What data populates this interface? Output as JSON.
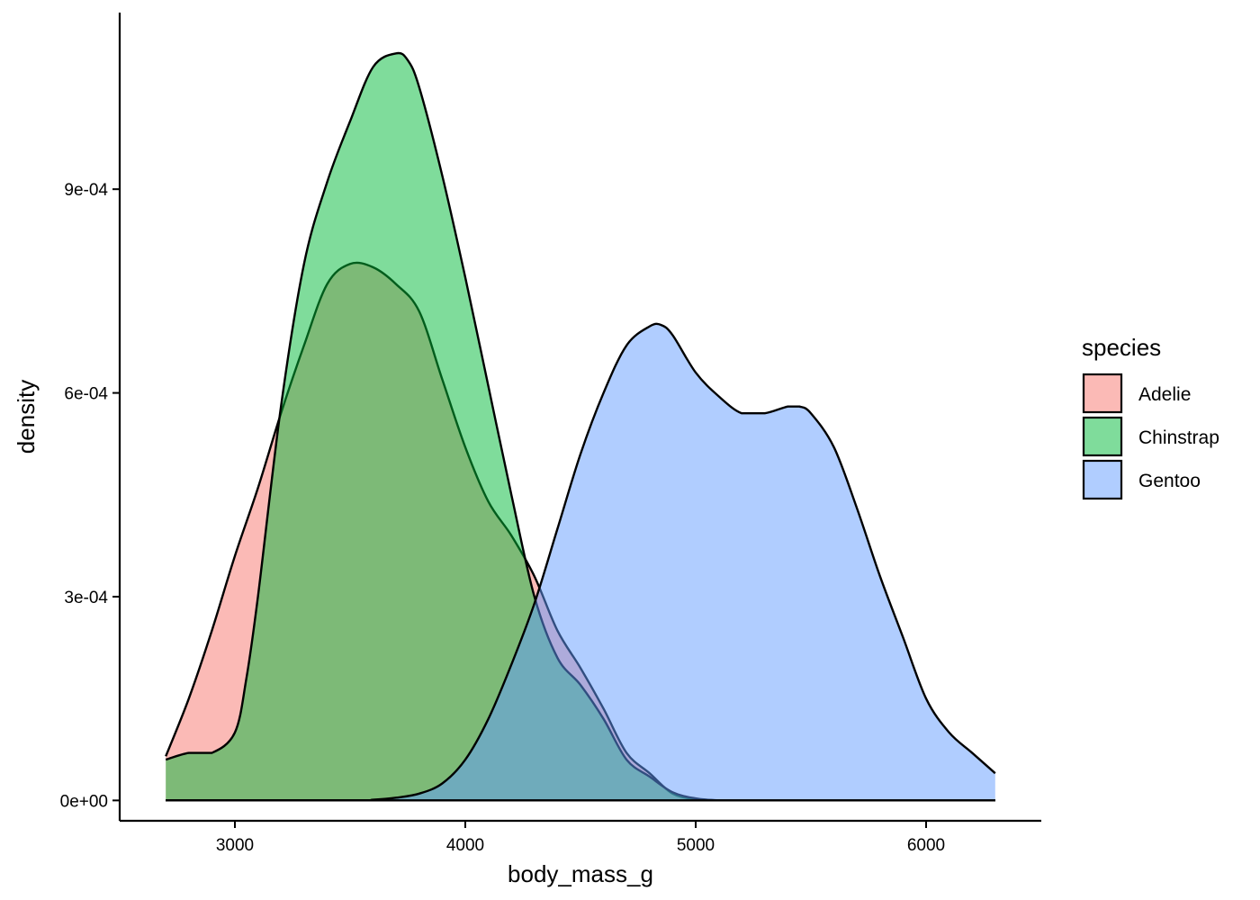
{
  "chart_data": {
    "type": "area",
    "subtype": "density",
    "xlabel": "body_mass_g",
    "ylabel": "density",
    "xlim": [
      2500,
      6500
    ],
    "ylim": [
      -3e-05,
      0.00116
    ],
    "x_ticks": [
      3000,
      4000,
      5000,
      6000
    ],
    "x_tick_labels": [
      "3000",
      "4000",
      "5000",
      "6000"
    ],
    "y_ticks": [
      0,
      0.0003,
      0.0006,
      0.0009
    ],
    "y_tick_labels": [
      "0e+00",
      "3e-04",
      "6e-04",
      "9e-04"
    ],
    "grid": false,
    "legend": {
      "title": "species",
      "position": "right"
    },
    "fill_opacity": 0.5,
    "series": [
      {
        "name": "Adelie",
        "color": "#F8766D",
        "x": [
          2700,
          2800,
          2900,
          3000,
          3100,
          3200,
          3300,
          3400,
          3500,
          3600,
          3700,
          3800,
          3900,
          4000,
          4100,
          4200,
          4300,
          4400,
          4500,
          4600,
          4700,
          4800,
          4900,
          5000,
          5100,
          5200,
          5300,
          6300
        ],
        "y": [
          6.5e-05,
          0.00015,
          0.00025,
          0.00036,
          0.00046,
          0.00057,
          0.00067,
          0.00076,
          0.00079,
          0.000785,
          0.00076,
          0.00072,
          0.00062,
          0.00052,
          0.00044,
          0.00039,
          0.00033,
          0.00025,
          0.000195,
          0.000135,
          7e-05,
          4e-05,
          1e-05,
          2e-06,
          0,
          0,
          0,
          0
        ]
      },
      {
        "name": "Chinstrap",
        "color": "#00BA38",
        "x": [
          2700,
          2800,
          2900,
          3000,
          3050,
          3100,
          3200,
          3300,
          3400,
          3500,
          3600,
          3700,
          3750,
          3800,
          3900,
          4000,
          4100,
          4200,
          4300,
          4400,
          4500,
          4600,
          4700,
          4800,
          4900,
          5000,
          5100,
          5200,
          6300
        ],
        "y": [
          6e-05,
          7e-05,
          7e-05,
          0.0001,
          0.00018,
          0.0003,
          0.00058,
          0.00079,
          0.00091,
          0.001,
          0.00108,
          0.0011,
          0.00109,
          0.00105,
          0.00092,
          0.00077,
          0.00061,
          0.00045,
          0.0003,
          0.00021,
          0.00017,
          0.00012,
          6e-05,
          3.5e-05,
          1.2e-05,
          3e-06,
          0,
          0,
          0
        ]
      },
      {
        "name": "Gentoo",
        "color": "#619CFF",
        "x": [
          2700,
          3500,
          3600,
          3700,
          3800,
          3900,
          4000,
          4100,
          4200,
          4300,
          4400,
          4500,
          4600,
          4700,
          4800,
          4850,
          4900,
          5000,
          5100,
          5200,
          5300,
          5400,
          5450,
          5500,
          5600,
          5700,
          5800,
          5900,
          6000,
          6100,
          6200,
          6300
        ],
        "y": [
          0,
          0,
          1e-06,
          4e-06,
          1e-05,
          2.5e-05,
          6e-05,
          0.00012,
          0.0002,
          0.00029,
          0.0004,
          0.00051,
          0.0006,
          0.00067,
          0.000698,
          0.0007,
          0.000685,
          0.00063,
          0.000595,
          0.00057,
          0.00057,
          0.00058,
          0.00058,
          0.00057,
          0.00052,
          0.00043,
          0.00033,
          0.00024,
          0.00015,
          0.0001,
          7e-05,
          4e-05
        ]
      }
    ]
  }
}
